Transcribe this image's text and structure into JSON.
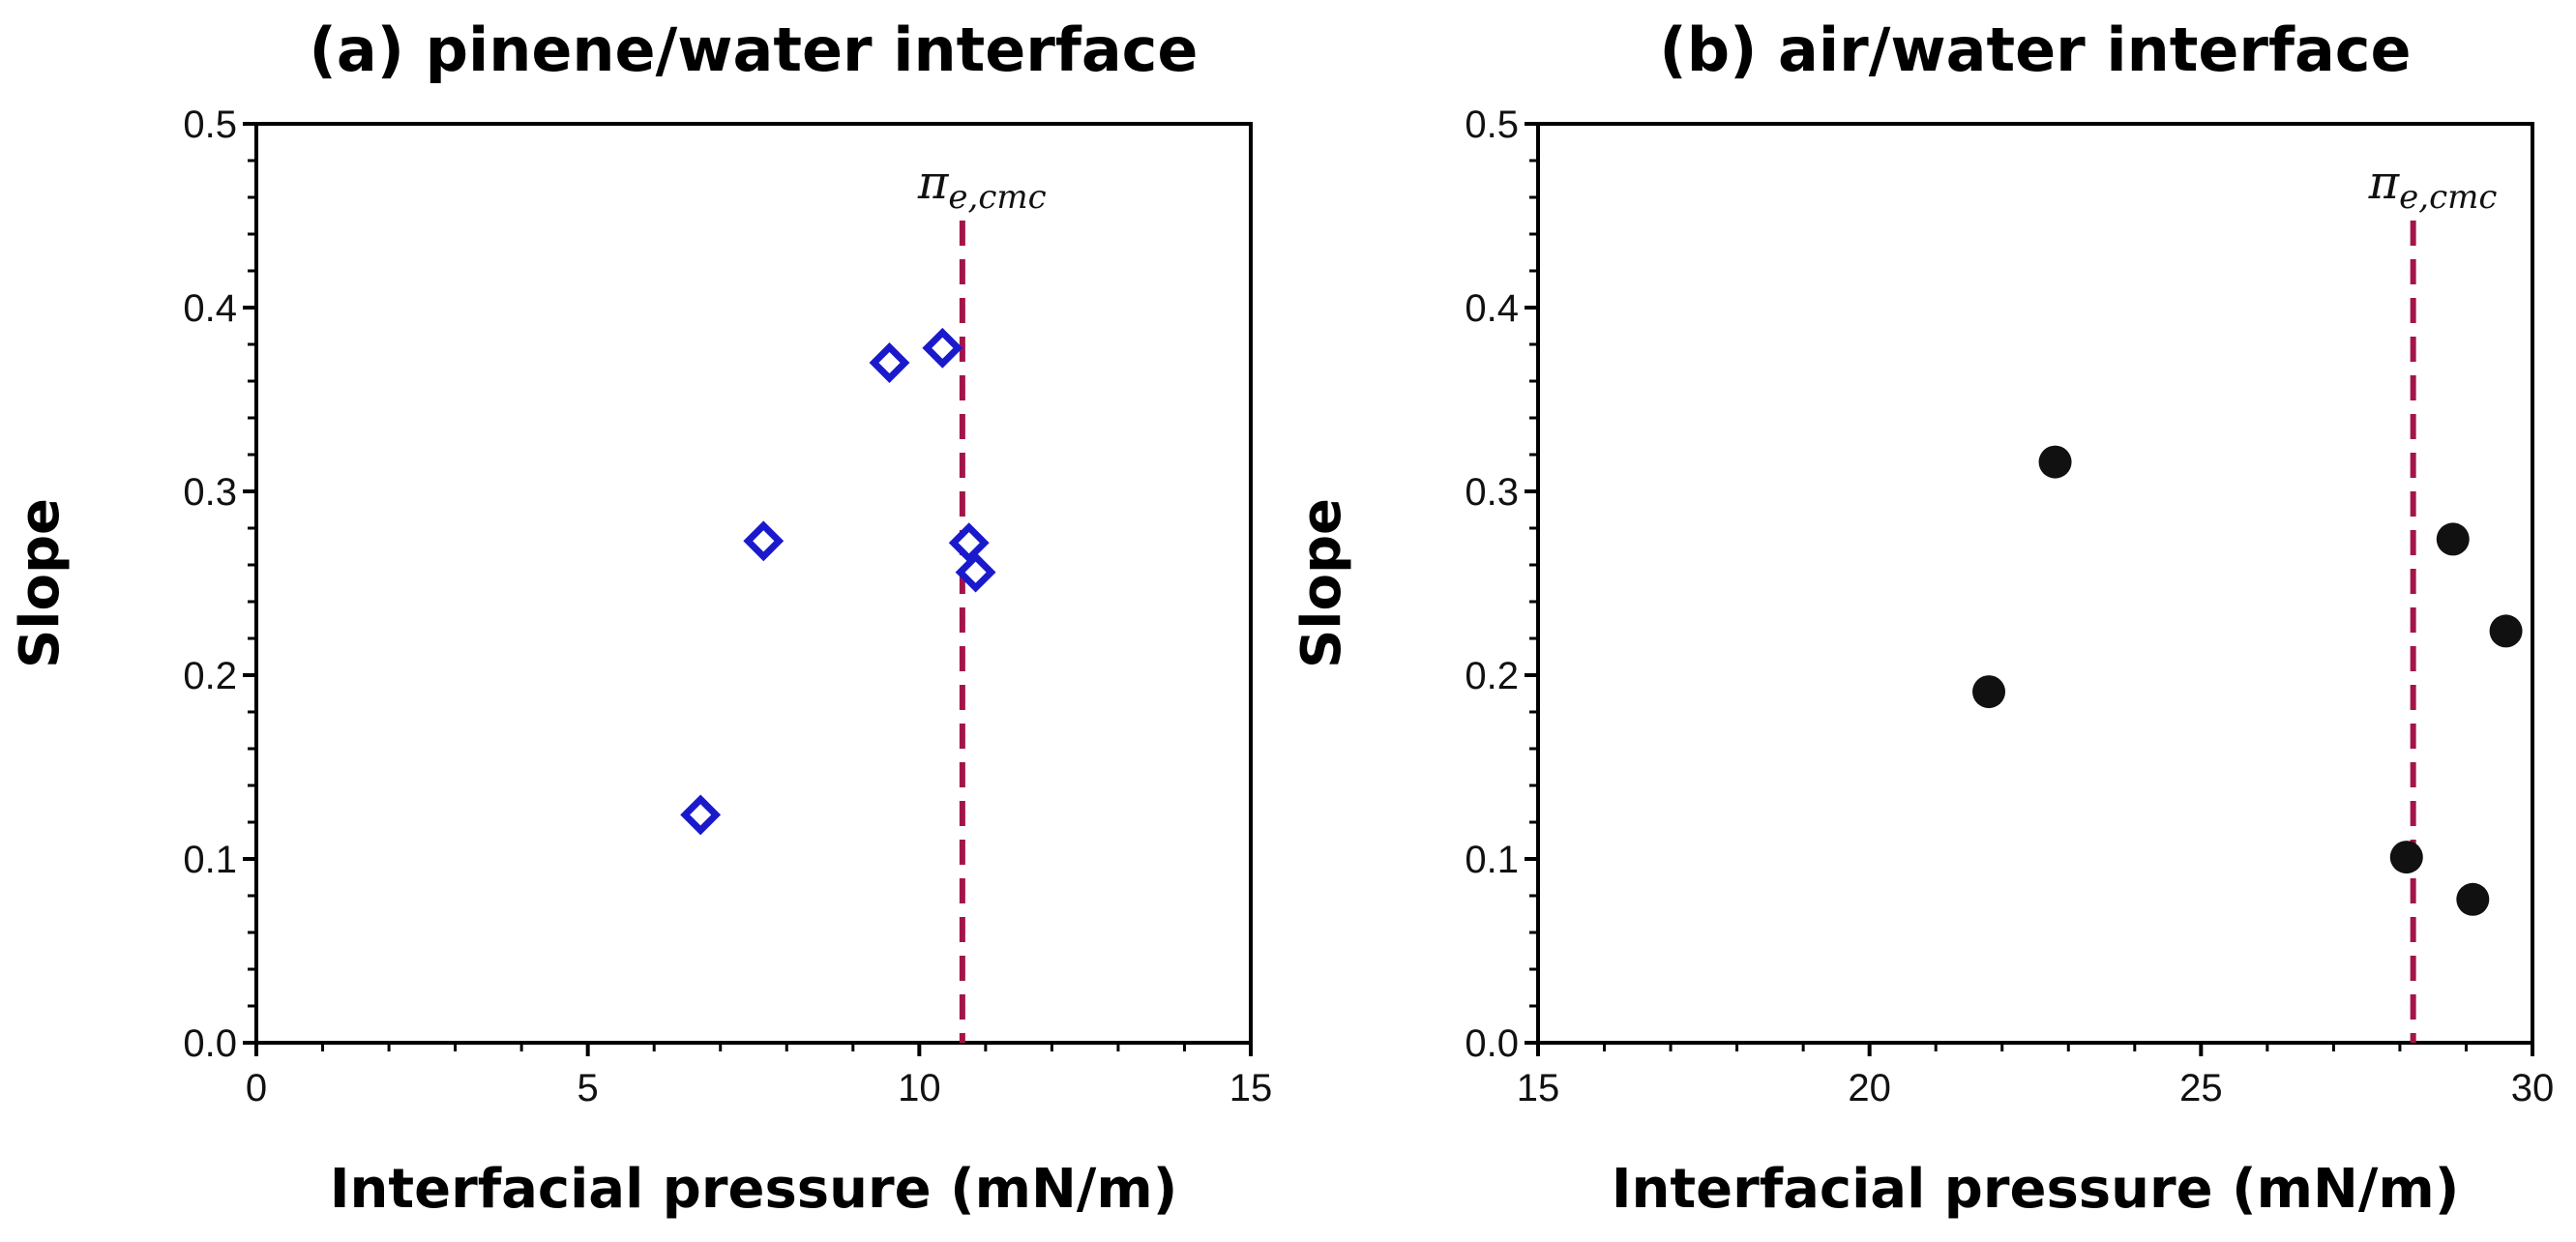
{
  "chart_data": [
    {
      "type": "scatter",
      "title": "(a) pinene/water interface",
      "xlabel": "Interfacial pressure (mN/m)",
      "ylabel": "Slope",
      "xlim": [
        0,
        15
      ],
      "ylim": [
        0,
        0.5
      ],
      "xticks": [
        "0",
        "5",
        "10",
        "15"
      ],
      "yticks": [
        "0.0",
        "0.1",
        "0.2",
        "0.3",
        "0.4",
        "0.5"
      ],
      "marker": "open-diamond",
      "marker_color": "#1a1acc",
      "cmc_line_color": "#a3154a",
      "cmc_label": "π",
      "cmc_label_sub": "e,cmc",
      "cmc_x": 10.65,
      "x": [
        6.7,
        7.65,
        9.55,
        10.35,
        10.75,
        10.85
      ],
      "y": [
        0.124,
        0.273,
        0.37,
        0.378,
        0.272,
        0.256
      ]
    },
    {
      "type": "scatter",
      "title": "(b) air/water interface",
      "xlabel": "Interfacial pressure (mN/m)",
      "ylabel": "Slope",
      "xlim": [
        15,
        30
      ],
      "ylim": [
        0,
        0.5
      ],
      "xticks": [
        "15",
        "20",
        "25",
        "30"
      ],
      "yticks": [
        "0.0",
        "0.1",
        "0.2",
        "0.3",
        "0.4",
        "0.5"
      ],
      "marker": "filled-circle",
      "marker_color": "#111111",
      "cmc_line_color": "#a3154a",
      "cmc_label": "π",
      "cmc_label_sub": "e,cmc",
      "cmc_x": 28.2,
      "x": [
        21.8,
        22.8,
        28.1,
        28.8,
        29.1,
        29.6
      ],
      "y": [
        0.191,
        0.316,
        0.101,
        0.274,
        0.078,
        0.224
      ]
    }
  ]
}
